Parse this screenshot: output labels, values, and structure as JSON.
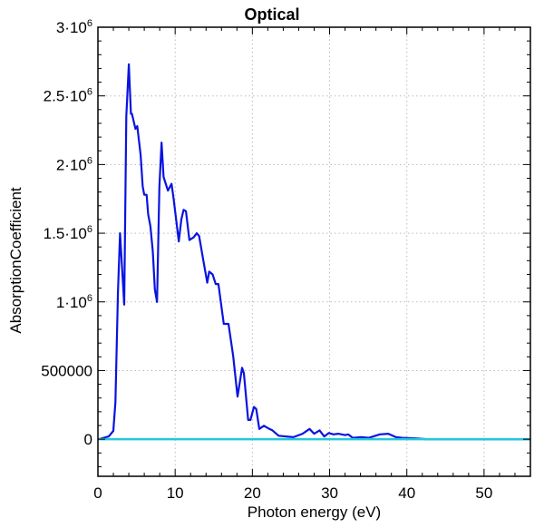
{
  "chart_data": {
    "type": "line",
    "title": "Optical",
    "xlabel": "Photon energy (eV)",
    "ylabel": "AbsorptionCoefficient",
    "xlim": [
      0,
      56
    ],
    "ylim": [
      -270000,
      3000000
    ],
    "grid": true,
    "legend": "none",
    "x_ticks": [
      0,
      10,
      20,
      30,
      40,
      50
    ],
    "x_tick_labels": [
      "0",
      "10",
      "20",
      "30",
      "40",
      "50"
    ],
    "y_ticks": [
      0,
      500000,
      1000000,
      1500000,
      2000000,
      2500000,
      3000000
    ],
    "y_tick_labels": [
      {
        "base": "0",
        "exp": ""
      },
      {
        "base": "500000",
        "exp": ""
      },
      {
        "base": "1·10",
        "exp": "6"
      },
      {
        "base": "1.5·10",
        "exp": "6"
      },
      {
        "base": "2·10",
        "exp": "6"
      },
      {
        "base": "2.5·10",
        "exp": "6"
      },
      {
        "base": "3·10",
        "exp": "6"
      }
    ],
    "series": [
      {
        "color": "#0a14e0",
        "x": [
          0.15,
          1.4,
          2.0,
          2.27,
          2.6,
          2.86,
          3.41,
          3.68,
          4.0,
          4.27,
          4.4,
          4.86,
          5.1,
          5.53,
          5.8,
          6.0,
          6.3,
          6.5,
          6.8,
          7.1,
          7.37,
          7.65,
          7.96,
          8.24,
          8.5,
          9.06,
          9.53,
          9.8,
          10.47,
          10.8,
          11.1,
          11.4,
          11.85,
          12.4,
          12.8,
          13.1,
          13.65,
          14.16,
          14.4,
          14.85,
          15.25,
          15.6,
          16.3,
          16.9,
          17.5,
          18.08,
          18.67,
          18.9,
          19.45,
          19.75,
          20.2,
          20.5,
          20.9,
          21.5,
          22.2,
          22.6,
          23.4,
          25.3,
          26.5,
          27.4,
          28.0,
          28.7,
          29.3,
          29.9,
          30.5,
          31.1,
          32.0,
          32.4,
          33.0,
          34.1,
          35.1,
          36.5,
          37.6,
          38.6,
          39.4,
          41.4,
          42.5,
          56
        ],
        "y": [
          0,
          20000,
          60000,
          270000,
          1070000,
          1500000,
          980000,
          2350000,
          2730000,
          2370000,
          2370000,
          2260000,
          2280000,
          2070000,
          1840000,
          1780000,
          1780000,
          1640000,
          1550000,
          1370000,
          1090000,
          1000000,
          1840000,
          2160000,
          1910000,
          1810000,
          1860000,
          1750000,
          1440000,
          1600000,
          1670000,
          1660000,
          1450000,
          1470000,
          1500000,
          1480000,
          1300000,
          1140000,
          1220000,
          1200000,
          1130000,
          1130000,
          840000,
          840000,
          610000,
          310000,
          520000,
          480000,
          140000,
          140000,
          235000,
          220000,
          75000,
          98000,
          75000,
          64000,
          25000,
          15000,
          40000,
          75000,
          40000,
          64000,
          20000,
          45000,
          35000,
          40000,
          30000,
          35000,
          10000,
          15000,
          10000,
          35000,
          40000,
          15000,
          10000,
          5000,
          0,
          0
        ]
      },
      {
        "color": "#22c8d8",
        "x": [
          0,
          56
        ],
        "y": [
          0,
          0
        ]
      }
    ]
  }
}
